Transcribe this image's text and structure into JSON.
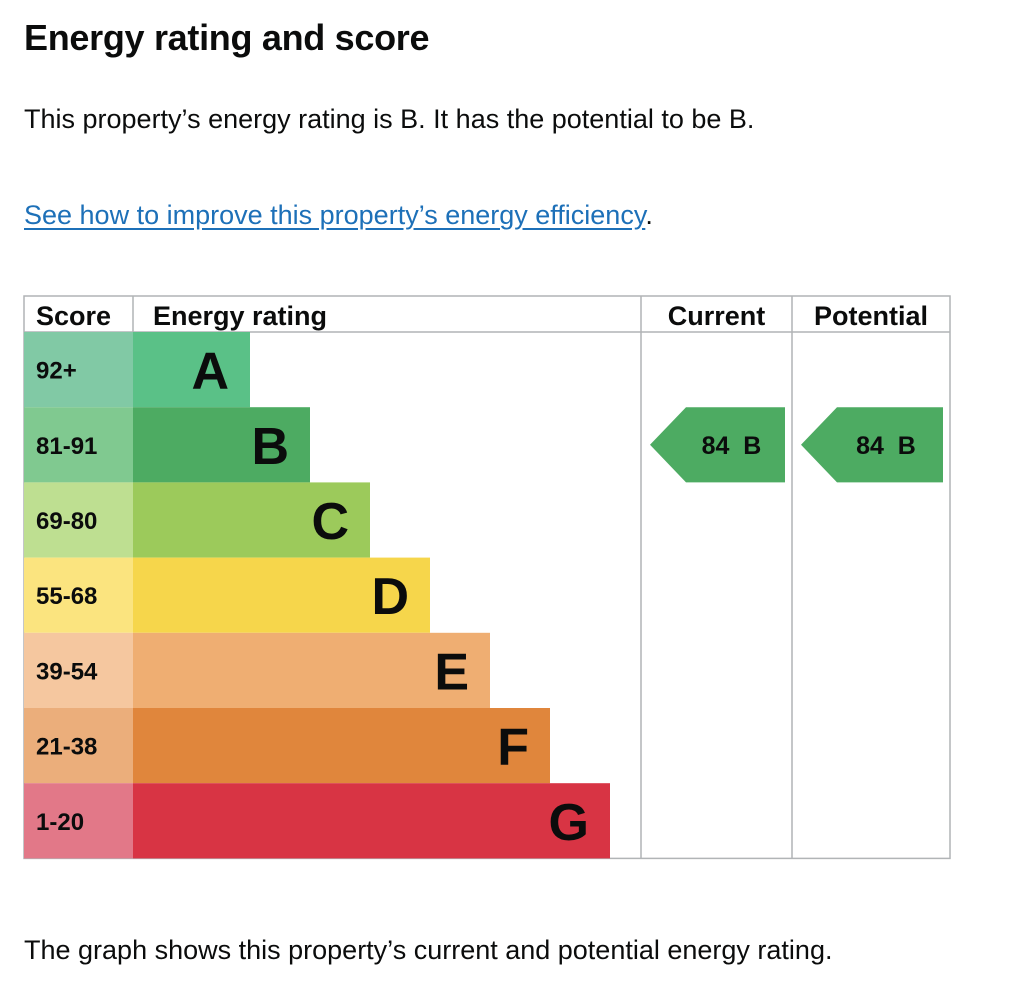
{
  "heading": "Energy rating and score",
  "summary": "This property’s energy rating is B. It has the potential to be B.",
  "improve_link": {
    "text": "See how to improve this property’s energy efficiency",
    "trailing": "."
  },
  "footer": "The graph shows this property’s current and potential energy rating.",
  "chart_data": {
    "type": "bar",
    "columns": {
      "score": "Score",
      "rating": "Energy rating",
      "current": "Current",
      "potential": "Potential"
    },
    "bands": [
      {
        "letter": "A",
        "score_range": "92+",
        "color": "#5ac187",
        "score_bg": "#81c9a5"
      },
      {
        "letter": "B",
        "score_range": "81-91",
        "color": "#4dab62",
        "score_bg": "#80c990"
      },
      {
        "letter": "C",
        "score_range": "69-80",
        "color": "#9cca5b",
        "score_bg": "#bedf91"
      },
      {
        "letter": "D",
        "score_range": "55-68",
        "color": "#f6d64b",
        "score_bg": "#fbe47f"
      },
      {
        "letter": "E",
        "score_range": "39-54",
        "color": "#efae72",
        "score_bg": "#f5c79f"
      },
      {
        "letter": "F",
        "score_range": "21-38",
        "color": "#e0863c",
        "score_bg": "#ebae7b"
      },
      {
        "letter": "G",
        "score_range": "1-20",
        "color": "#d83444",
        "score_bg": "#e27888"
      }
    ],
    "current": {
      "score": 84,
      "band": "B",
      "label": "84  B",
      "color": "#4dab62"
    },
    "potential": {
      "score": 84,
      "band": "B",
      "label": "84  B",
      "color": "#4dab62"
    }
  }
}
